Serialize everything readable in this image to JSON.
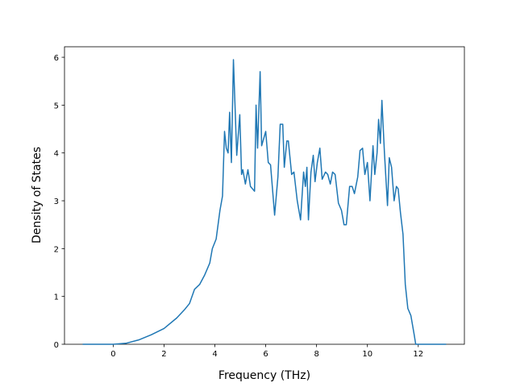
{
  "chart_data": {
    "type": "line",
    "xlabel": "Frequency (THz)",
    "ylabel": "Density of States",
    "xlim": [
      -1.915,
      13.815
    ],
    "ylim": [
      0,
      6.22
    ],
    "xticks": [
      0,
      2,
      4,
      6,
      8,
      10,
      12
    ],
    "yticks": [
      0,
      1,
      2,
      3,
      4,
      5,
      6
    ],
    "series": [
      {
        "color": "#1f77b4",
        "x": [
          -1.2,
          0.0,
          0.5,
          1.0,
          1.5,
          2.0,
          2.5,
          2.8,
          3.0,
          3.2,
          3.4,
          3.6,
          3.8,
          3.9,
          4.05,
          4.2,
          4.3,
          4.38,
          4.45,
          4.52,
          4.58,
          4.65,
          4.73,
          4.86,
          4.98,
          5.05,
          5.1,
          5.2,
          5.3,
          5.4,
          5.56,
          5.62,
          5.68,
          5.78,
          5.84,
          6.0,
          6.1,
          6.19,
          6.35,
          6.48,
          6.57,
          6.67,
          6.73,
          6.83,
          6.89,
          7.02,
          7.11,
          7.24,
          7.37,
          7.49,
          7.56,
          7.62,
          7.68,
          7.78,
          7.87,
          7.94,
          8.03,
          8.13,
          8.22,
          8.35,
          8.44,
          8.54,
          8.63,
          8.73,
          8.86,
          8.98,
          9.08,
          9.17,
          9.3,
          9.4,
          9.49,
          9.62,
          9.71,
          9.81,
          9.9,
          10.0,
          10.1,
          10.22,
          10.29,
          10.38,
          10.44,
          10.51,
          10.57,
          10.67,
          10.79,
          10.86,
          10.95,
          11.05,
          11.14,
          11.21,
          11.3,
          11.4,
          11.49,
          11.59,
          11.71,
          11.84,
          11.9,
          13.1
        ],
        "values": [
          0,
          0,
          0.02,
          0.09,
          0.2,
          0.33,
          0.55,
          0.72,
          0.85,
          1.15,
          1.25,
          1.45,
          1.7,
          2.0,
          2.2,
          2.8,
          3.1,
          4.45,
          4.1,
          4.0,
          4.85,
          3.8,
          5.95,
          3.95,
          4.8,
          3.55,
          3.65,
          3.35,
          3.65,
          3.3,
          3.2,
          5.0,
          4.1,
          5.7,
          4.15,
          4.45,
          3.8,
          3.75,
          2.7,
          3.5,
          4.6,
          4.6,
          3.7,
          4.25,
          4.25,
          3.55,
          3.6,
          3.0,
          2.6,
          3.6,
          3.3,
          3.7,
          2.6,
          3.6,
          3.95,
          3.4,
          3.8,
          4.1,
          3.45,
          3.6,
          3.55,
          3.35,
          3.6,
          3.55,
          2.95,
          2.8,
          2.5,
          2.5,
          3.3,
          3.3,
          3.15,
          3.5,
          4.05,
          4.1,
          3.55,
          3.8,
          3.0,
          4.15,
          3.55,
          4.0,
          4.7,
          4.2,
          5.1,
          4.0,
          2.9,
          3.9,
          3.7,
          3.0,
          3.3,
          3.25,
          2.75,
          2.3,
          1.25,
          0.75,
          0.6,
          0.2,
          0,
          0
        ]
      }
    ]
  }
}
